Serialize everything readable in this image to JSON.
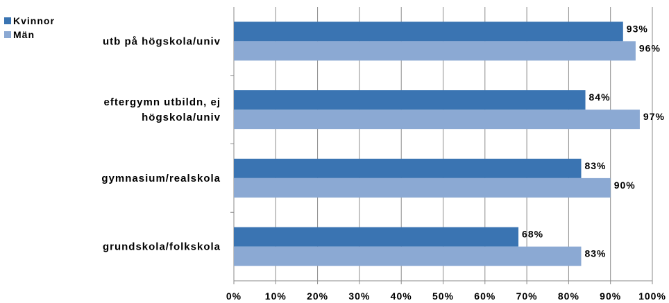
{
  "chart_data": {
    "type": "bar",
    "orientation": "horizontal",
    "categories": [
      [
        "utb på högskola/univ"
      ],
      [
        "eftergymn utbildn, ej",
        "högskola/univ"
      ],
      [
        "gymnasium/realskola"
      ],
      [
        "grundskola/folkskola"
      ]
    ],
    "series": [
      {
        "name": "Kvinnor",
        "color": "#3a74b2",
        "values": [
          93,
          84,
          83,
          68
        ],
        "labels": [
          "93%",
          "84%",
          "83%",
          "68%"
        ]
      },
      {
        "name": "Män",
        "color": "#8ba9d3",
        "values": [
          96,
          97,
          90,
          83
        ],
        "labels": [
          "96%",
          "97%",
          "90%",
          "83%"
        ]
      }
    ],
    "xlim": [
      0,
      100
    ],
    "xticks": [
      "0%",
      "10%",
      "20%",
      "30%",
      "40%",
      "50%",
      "60%",
      "70%",
      "80%",
      "90%",
      "100%"
    ],
    "grid": true,
    "legend_position": "top-left"
  }
}
